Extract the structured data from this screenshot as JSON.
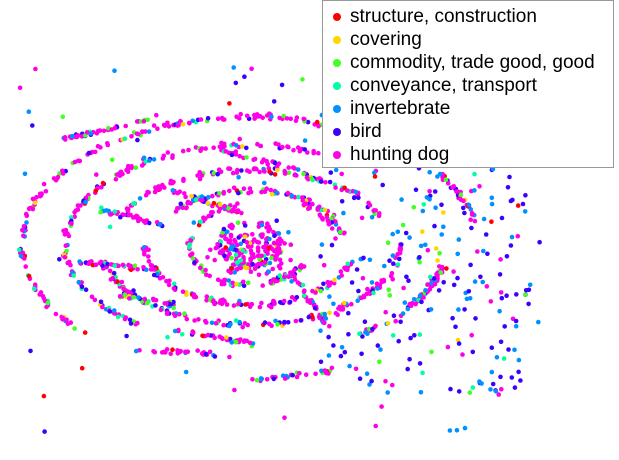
{
  "chart_data": {
    "type": "scatter",
    "title": "",
    "xlabel": "",
    "ylabel": "",
    "grid": false,
    "axes_visible": false,
    "legend_position": "top-right",
    "series": [
      {
        "name": "structure, construction",
        "color": "#ff0000",
        "weight": 0.05
      },
      {
        "name": "covering",
        "color": "#ffd700",
        "weight": 0.05
      },
      {
        "name": "commodity, trade good, good",
        "color": "#44ff22",
        "weight": 0.1
      },
      {
        "name": "conveyance, transport",
        "color": "#00ffa0",
        "weight": 0.09
      },
      {
        "name": "invertebrate",
        "color": "#0090ff",
        "weight": 0.16
      },
      {
        "name": "bird",
        "color": "#3c00ff",
        "weight": 0.17
      },
      {
        "name": "hunting dog",
        "color": "#ff00e6",
        "weight": 0.38
      }
    ]
  }
}
